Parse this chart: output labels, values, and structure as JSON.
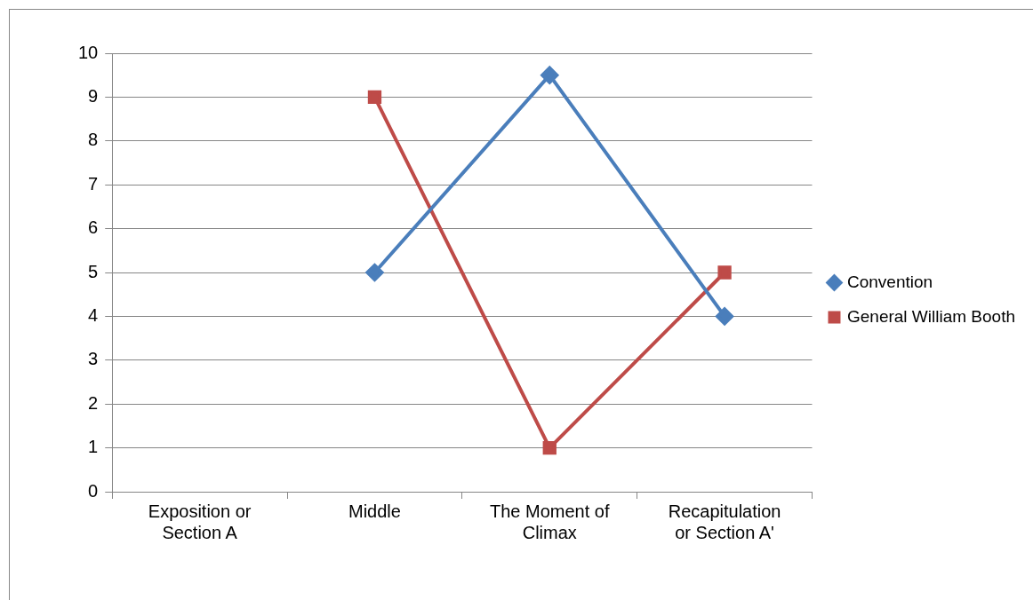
{
  "chart_data": {
    "type": "line",
    "categories": [
      "Exposition or Section A",
      "Middle",
      "The Moment of Climax",
      "Recapitulation or Section A'"
    ],
    "series": [
      {
        "name": "Convention",
        "color": "#4a7ebb",
        "marker": "diamond",
        "values": [
          null,
          5,
          9.5,
          4
        ]
      },
      {
        "name": "General William Booth",
        "color": "#be4b48",
        "marker": "square",
        "values": [
          null,
          9,
          1,
          5
        ]
      }
    ],
    "ylim": [
      0,
      10
    ],
    "yticks": [
      0,
      1,
      2,
      3,
      4,
      5,
      6,
      7,
      8,
      9,
      10
    ],
    "grid": "y",
    "legend": "right",
    "line_style": "solid"
  }
}
